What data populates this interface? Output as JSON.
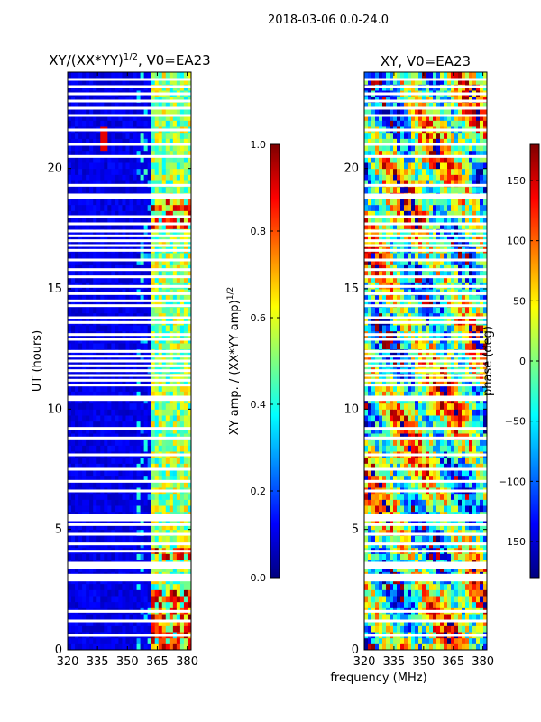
{
  "figure": {
    "suptitle": "2018-03-06 0.0-24.0",
    "xlabel_shared": "frequency (MHz)"
  },
  "colors": {
    "jet_stops": [
      "#00007f",
      "#0000ff",
      "#007fff",
      "#00ffff",
      "#7fff7f",
      "#ffff00",
      "#ff7f00",
      "#ff0000",
      "#7f0000"
    ],
    "gap": "#ffffff",
    "axis": "#000000"
  },
  "chart_data": [
    {
      "type": "heatmap",
      "title_main": "XY/(XX*YY)",
      "title_exp": "1/2",
      "title_tail": ", V0=EA23",
      "xlabel": "",
      "ylabel": "UT (hours)",
      "xlim": [
        320,
        382
      ],
      "ylim": [
        0,
        24
      ],
      "xticks": [
        320,
        335,
        350,
        365,
        380
      ],
      "yticks": [
        0,
        5,
        10,
        15,
        20
      ],
      "colorbar": {
        "label_main": "XY amp. / (XX*YY amp)",
        "label_exp": "1/2",
        "range": [
          0.0,
          1.0
        ],
        "ticks": [
          "0.0",
          "0.2",
          "0.4",
          "0.6",
          "0.8",
          "1.0"
        ]
      }
    },
    {
      "type": "heatmap",
      "title_main": "XY, V0=EA23",
      "xlabel": "frequency (MHz)",
      "ylabel": "",
      "xlim": [
        320,
        382
      ],
      "ylim": [
        0,
        24
      ],
      "xticks": [
        320,
        335,
        350,
        365,
        380
      ],
      "yticks": [
        0,
        5,
        10,
        15,
        20
      ],
      "colorbar": {
        "label_main": "phase (deg)",
        "range": [
          -180,
          180
        ],
        "ticks": [
          "-150",
          "-100",
          "-50",
          "0",
          "50",
          "100",
          "150"
        ]
      }
    }
  ]
}
